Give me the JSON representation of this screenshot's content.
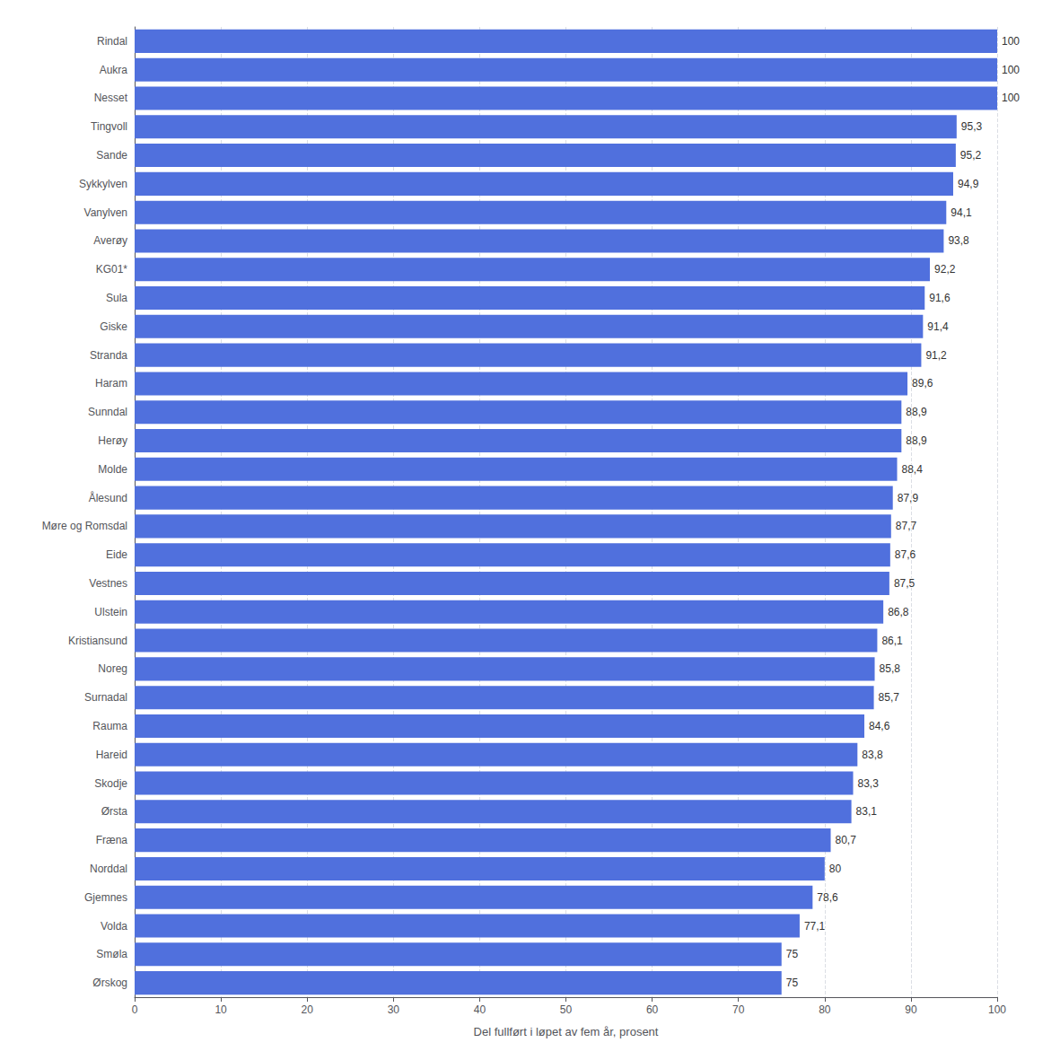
{
  "chart_data": {
    "type": "bar",
    "orientation": "horizontal",
    "xlabel": "Del fullført i løpet av fem år, prosent",
    "categories": [
      "Ørskog",
      "Smøla",
      "Volda",
      "Gjemnes",
      "Norddal",
      "Fræna",
      "Ørsta",
      "Skodje",
      "Hareid",
      "Rauma",
      "Surnadal",
      "Noreg",
      "Kristiansund",
      "Ulstein",
      "Vestnes",
      "Eide",
      "Møre og Romsdal",
      "Ålesund",
      "Molde",
      "Herøy",
      "Sunndal",
      "Haram",
      "Stranda",
      "Giske",
      "Sula",
      "KG01*",
      "Averøy",
      "Vanylven",
      "Sykkylven",
      "Sande",
      "Tingvoll",
      "Nesset",
      "Aukra",
      "Rindal"
    ],
    "values": [
      75,
      75,
      77.1,
      78.6,
      80,
      80.7,
      83.1,
      83.3,
      83.8,
      84.6,
      85.7,
      85.8,
      86.1,
      86.8,
      87.5,
      87.6,
      87.7,
      87.9,
      88.4,
      88.9,
      88.9,
      89.6,
      91.2,
      91.4,
      91.6,
      92.2,
      93.8,
      94.1,
      94.9,
      95.2,
      95.3,
      100,
      100,
      100
    ],
    "value_labels": [
      "75",
      "75",
      "77,1",
      "78,6",
      "80",
      "80,7",
      "83,1",
      "83,3",
      "83,8",
      "84,6",
      "85,7",
      "85,8",
      "86,1",
      "86,8",
      "87,5",
      "87,6",
      "87,7",
      "87,9",
      "88,4",
      "88,9",
      "88,9",
      "89,6",
      "91,2",
      "91,4",
      "91,6",
      "92,2",
      "93,8",
      "94,1",
      "94,9",
      "95,2",
      "95,3",
      "100",
      "100",
      "100"
    ],
    "data_labels": true,
    "xlim": [
      0,
      100
    ],
    "xticks": [
      0,
      10,
      20,
      30,
      40,
      50,
      60,
      70,
      80,
      90,
      100
    ],
    "grid": true
  }
}
